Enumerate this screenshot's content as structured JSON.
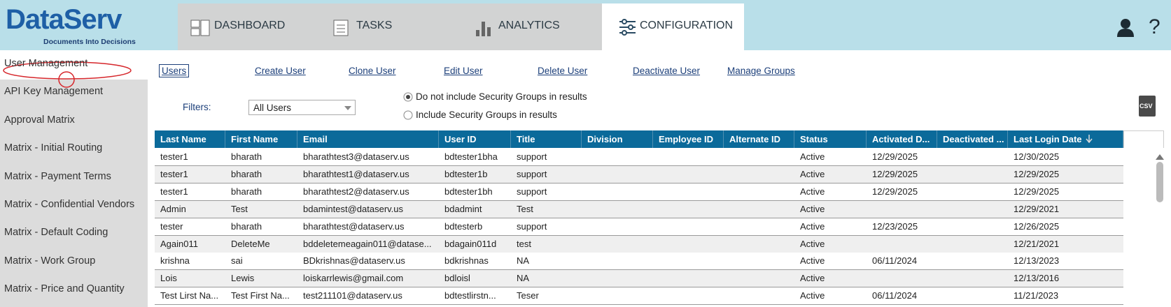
{
  "header": {
    "logo": "DataServ",
    "tagline": "Documents Into Decisions",
    "tabs": [
      "DASHBOARD",
      "TASKS",
      "ANALYTICS",
      "CONFIGURATION"
    ],
    "help": "?"
  },
  "sidebar": {
    "items": [
      "User Management",
      "API Key Management",
      "Approval Matrix",
      "Matrix - Initial Routing",
      "Matrix - Payment Terms",
      "Matrix - Confidential Vendors",
      "Matrix - Default Coding",
      "Matrix - Work Group",
      "Matrix - Price and Quantity"
    ]
  },
  "actions": [
    "Users",
    "Create User",
    "Clone User",
    "Edit User",
    "Delete User",
    "Deactivate User",
    "Manage Groups"
  ],
  "filters": {
    "label": "Filters:",
    "dropdown": "All Users",
    "options": [
      "Do not include Security Groups in results",
      "Include Security Groups in results"
    ],
    "export": "CSV"
  },
  "table": {
    "columns": [
      "Last Name",
      "First Name",
      "Email",
      "User ID",
      "Title",
      "Division",
      "Employee ID",
      "Alternate ID",
      "Status",
      "Activated D...",
      "Deactivated ...",
      "Last Login Date"
    ],
    "rows": [
      [
        "tester1",
        "bharath",
        "bharathtest3@dataserv.us",
        "bdtester1bha",
        "support",
        null,
        null,
        null,
        "Active",
        "12/29/2025",
        null,
        "12/30/2025"
      ],
      [
        "tester1",
        "bharath",
        "bharathtest1@dataserv.us",
        "bdtester1b",
        "support",
        null,
        null,
        null,
        "Active",
        "12/29/2025",
        null,
        "12/29/2025"
      ],
      [
        "tester1",
        "bharath",
        "bharathtest2@dataserv.us",
        "bdtester1bh",
        "support",
        null,
        null,
        null,
        "Active",
        "12/29/2025",
        null,
        "12/29/2025"
      ],
      [
        "Admin",
        "Test",
        "bdamintest@dataserv.us",
        "bdadmint",
        "Test",
        null,
        null,
        null,
        "Active",
        null,
        null,
        "12/29/2021"
      ],
      [
        "tester",
        "bharath",
        "bharathtest@dataserv.us",
        "bdtesterb",
        "support",
        null,
        null,
        null,
        "Active",
        "12/23/2025",
        null,
        "12/26/2025"
      ],
      [
        "Again011",
        "DeleteMe",
        "bddeletemeagain011@datase...",
        "bdagain011d",
        "test",
        null,
        null,
        null,
        "Active",
        null,
        null,
        "12/21/2021"
      ],
      [
        "krishna",
        "sai",
        "BDkrishnas@dataserv.us",
        "bdkrishnas",
        "NA",
        null,
        null,
        null,
        "Active",
        "06/11/2024",
        null,
        "12/13/2023"
      ],
      [
        "Lois",
        "Lewis",
        "loiskarrlewis@gmail.com",
        "bdloisl",
        "NA",
        null,
        null,
        null,
        "Active",
        null,
        null,
        "12/13/2016"
      ],
      [
        "Test Lirst Na...",
        "Test First Na...",
        "test211101@dataserv.us",
        "bdtestlirstn...",
        "Teser",
        null,
        null,
        null,
        "Active",
        "06/11/2024",
        null,
        "11/21/2023"
      ]
    ]
  }
}
